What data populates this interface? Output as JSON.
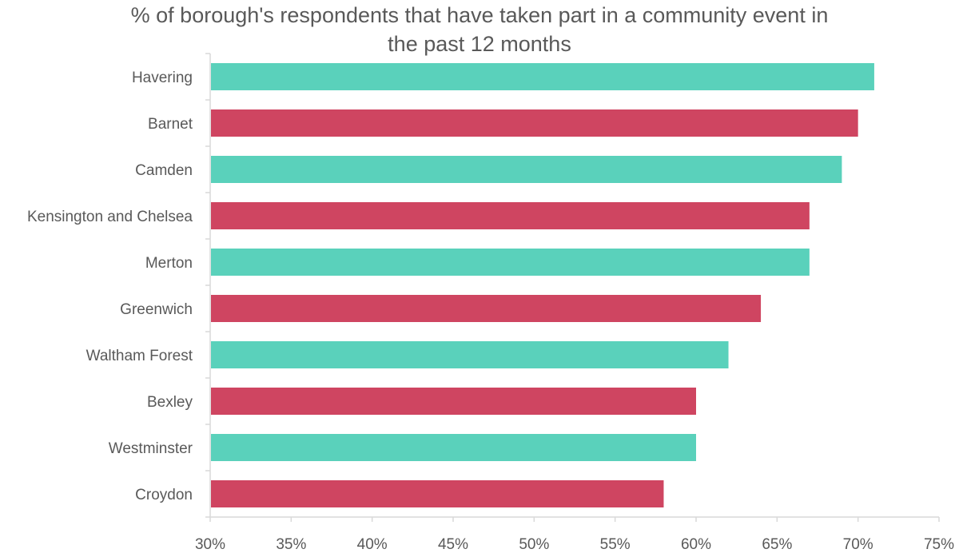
{
  "chart_data": {
    "type": "bar",
    "orientation": "horizontal",
    "title_lines": [
      "% of borough's respondents that have taken part in a community event in",
      "the past 12 months"
    ],
    "categories": [
      "Havering",
      "Barnet",
      "Camden",
      "Kensington and Chelsea",
      "Merton",
      "Greenwich",
      "Waltham Forest",
      "Bexley",
      "Westminster",
      "Croydon"
    ],
    "values": [
      71,
      70,
      69,
      67,
      67,
      64,
      62,
      60,
      60,
      58
    ],
    "colors": [
      "#5ad1bb",
      "#cf4561",
      "#5ad1bb",
      "#cf4561",
      "#5ad1bb",
      "#cf4561",
      "#5ad1bb",
      "#cf4561",
      "#5ad1bb",
      "#cf4561"
    ],
    "xlim": [
      30,
      75
    ],
    "xticks": [
      "30%",
      "35%",
      "40%",
      "45%",
      "50%",
      "55%",
      "60%",
      "65%",
      "70%",
      "75%"
    ],
    "xlabel": "",
    "ylabel": "",
    "grid": false,
    "legend": "none"
  }
}
